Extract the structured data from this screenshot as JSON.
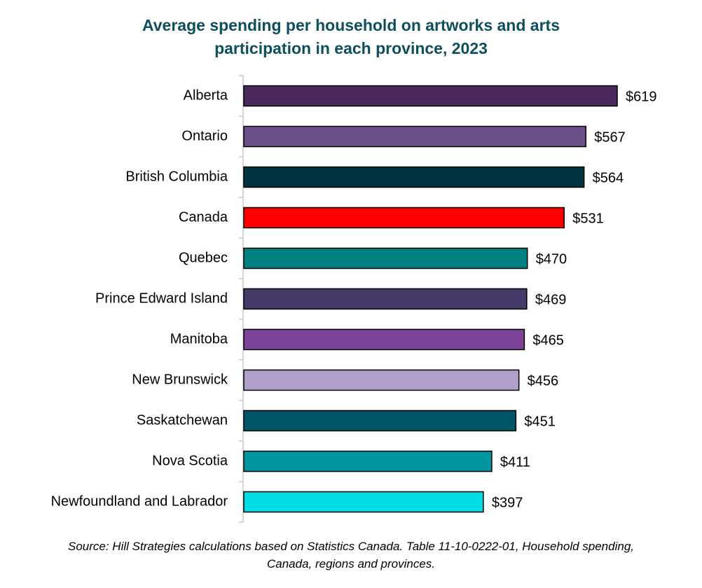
{
  "chart_data": {
    "type": "bar",
    "orientation": "horizontal",
    "title_lines": [
      "Average spending per household on artworks and arts",
      "participation in each province, 2023"
    ],
    "categories": [
      "Alberta",
      "Ontario",
      "British Columbia",
      "Canada",
      "Quebec",
      "Prince Edward Island",
      "Manitoba",
      "New Brunswick",
      "Saskatchewan",
      "Nova Scotia",
      "Newfoundland and Labrador"
    ],
    "values": [
      619,
      567,
      564,
      531,
      470,
      469,
      465,
      456,
      451,
      411,
      397
    ],
    "value_labels": [
      "$619",
      "$567",
      "$564",
      "$531",
      "$470",
      "$469",
      "$465",
      "$456",
      "$451",
      "$411",
      "$397"
    ],
    "colors": [
      "#4a2a5e",
      "#6a5088",
      "#003340",
      "#ff0000",
      "#008080",
      "#463a6a",
      "#7d4399",
      "#b09fc8",
      "#005566",
      "#0096a0",
      "#00dde5"
    ],
    "xlim": [
      0,
      619
    ],
    "grid": false,
    "legend": false,
    "source_lines": [
      "Source: Hill Strategies calculations based on Statistics Canada. Table 11-10-0222-01, Household spending,",
      "Canada, regions and provinces."
    ]
  }
}
